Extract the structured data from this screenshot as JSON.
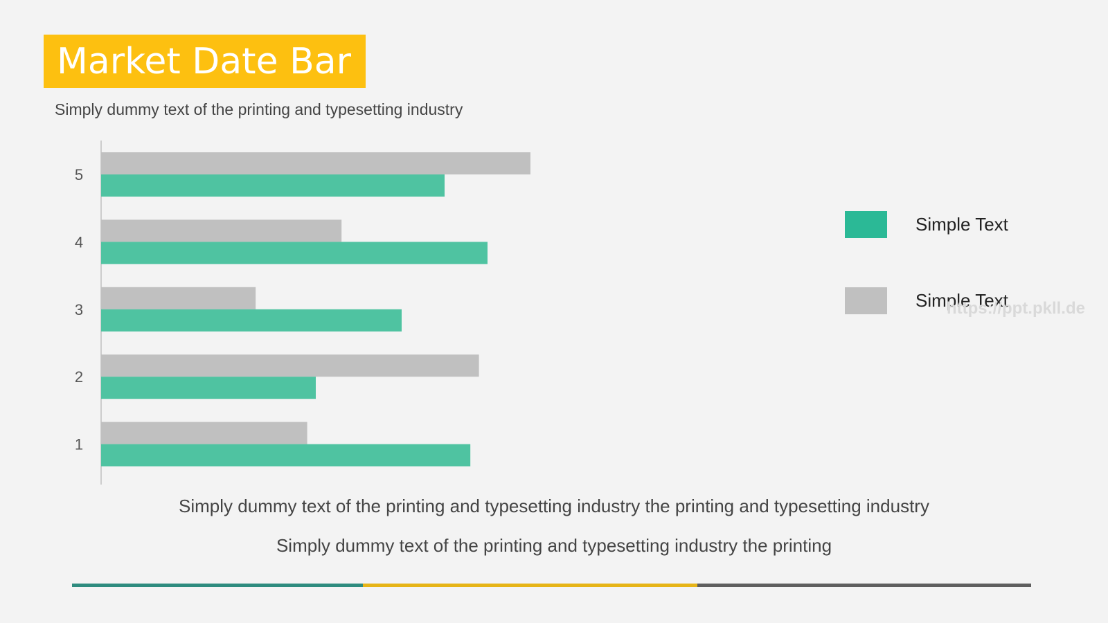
{
  "title": "Market Date Bar",
  "subtitle": "Simply dummy text of the printing and typesetting industry",
  "captions": [
    "Simply dummy text of the printing and typesetting industry the printing and typesetting industry",
    "Simply dummy text of the printing and typesetting industry the printing"
  ],
  "watermark": "https://ppt.pkll.de",
  "colors": {
    "title_bg": "#fdc010",
    "green": "#4fc3a1",
    "gray": "#c0c0c0",
    "footer": [
      "#2e8b7e",
      "#e6b417",
      "#5e5e5e"
    ]
  },
  "legend": [
    {
      "label": "Simple Text",
      "color": "#2bb996"
    },
    {
      "label": "Simple Text",
      "color": "#c0c0c0"
    }
  ],
  "chart_data": {
    "type": "bar",
    "orientation": "horizontal",
    "categories": [
      "1",
      "2",
      "3",
      "4",
      "5"
    ],
    "series": [
      {
        "values": [
          4.3,
          2.5,
          3.5,
          4.5,
          4.0
        ],
        "color": "#4fc3a1"
      },
      {
        "values": [
          2.4,
          4.4,
          1.8,
          2.8,
          5.0
        ],
        "color": "#c0c0c0"
      }
    ],
    "xlim": [
      0,
      10
    ],
    "grid": false,
    "legend_position": "right"
  }
}
